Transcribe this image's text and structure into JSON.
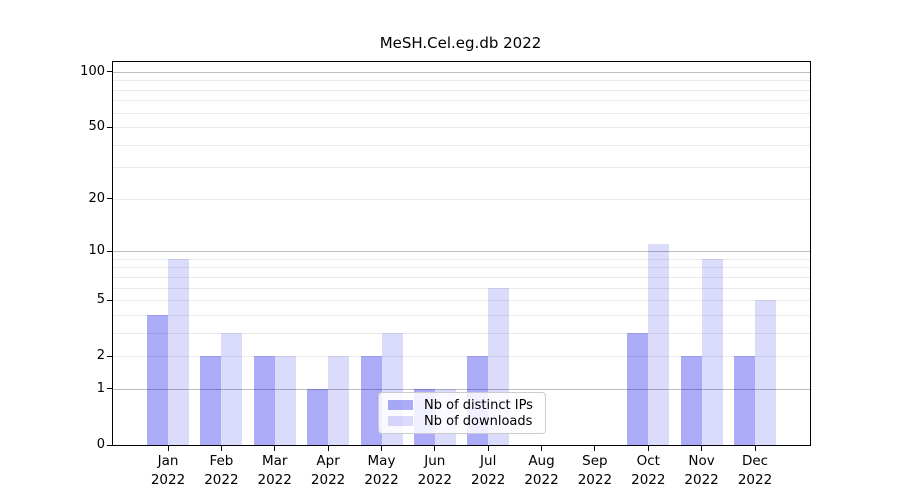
{
  "title": "MeSH.Cel.eg.db 2022",
  "chart_data": {
    "type": "bar",
    "title": "MeSH.Cel.eg.db 2022",
    "x_month_labels": [
      "Jan",
      "Feb",
      "Mar",
      "Apr",
      "May",
      "Jun",
      "Jul",
      "Aug",
      "Sep",
      "Oct",
      "Nov",
      "Dec"
    ],
    "x_year": "2022",
    "series": [
      {
        "name": "Nb of distinct IPs",
        "key": "distinct-ips",
        "color": "rgba(0,0,230,0.33)",
        "values": [
          4,
          2,
          2,
          1,
          2,
          1,
          2,
          0,
          0,
          3,
          2,
          2
        ]
      },
      {
        "name": "Nb of downloads",
        "key": "downloads",
        "color": "rgba(0,0,230,0.14)",
        "values": [
          9,
          3,
          2,
          2,
          3,
          1,
          6,
          0,
          0,
          11,
          9,
          5
        ]
      }
    ],
    "y_axis": {
      "scale": "log1p",
      "labeled_ticks": [
        0,
        1,
        2,
        5,
        10,
        20,
        50,
        100
      ],
      "major_grid": [
        1,
        10,
        100
      ],
      "minor_grid": [
        2,
        3,
        4,
        5,
        6,
        7,
        8,
        9,
        20,
        30,
        40,
        50,
        60,
        70,
        80,
        90
      ],
      "ylim": [
        0,
        113
      ]
    },
    "colors": {
      "major_grid": "#bdbdbd",
      "minor_grid": "#e9e9e9",
      "axis": "#000000",
      "background": "#ffffff"
    },
    "grid": true,
    "legend_position": "lower center"
  }
}
